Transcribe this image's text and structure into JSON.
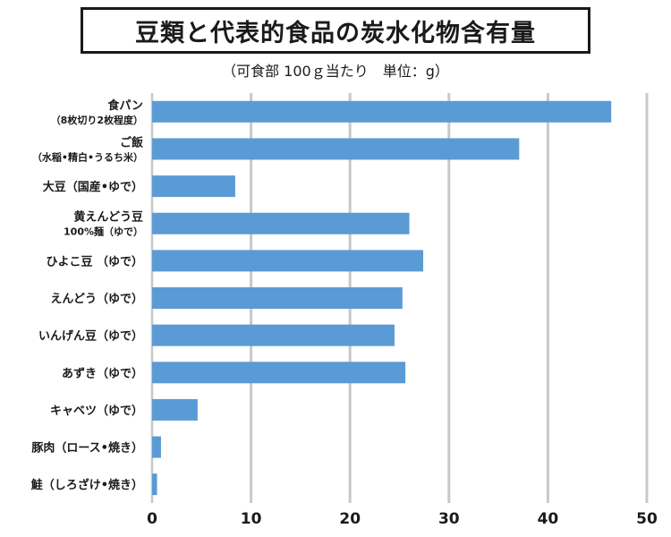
{
  "title": "豆類と代表的食品の炭水化物含有量",
  "subtitle": "（可食部 100ｇ当たり　単位：g）",
  "chart_data": {
    "type": "bar",
    "orientation": "horizontal",
    "title": "豆類と代表的食品の炭水化物含有量",
    "subtitle": "（可食部 100ｇ当たり　単位：g）",
    "xlim": [
      0,
      50
    ],
    "xticks": [
      "0",
      "10",
      "20",
      "30",
      "40",
      "50"
    ],
    "grid": true,
    "bar_color": "#5b9bd5",
    "categories": [
      [
        "食パン",
        "（8枚切り2枚程度）"
      ],
      [
        "ご飯",
        "（水稲•精白•うるち米）"
      ],
      [
        "大豆（国産•ゆで）"
      ],
      [
        "黄えんどう豆",
        "100%麺（ゆで）"
      ],
      [
        "ひよこ豆 （ゆで）"
      ],
      [
        "えんどう（ゆで）"
      ],
      [
        "いんげん豆（ゆで）"
      ],
      [
        "あずき（ゆで）"
      ],
      [
        "キャベツ（ゆで）"
      ],
      [
        "豚肉（ロース•焼き）"
      ],
      [
        "鮭（しろざけ•焼き）"
      ]
    ],
    "values": [
      46.4,
      37.1,
      8.4,
      26.0,
      27.4,
      25.3,
      24.5,
      25.6,
      4.6,
      0.9,
      0.5
    ]
  }
}
